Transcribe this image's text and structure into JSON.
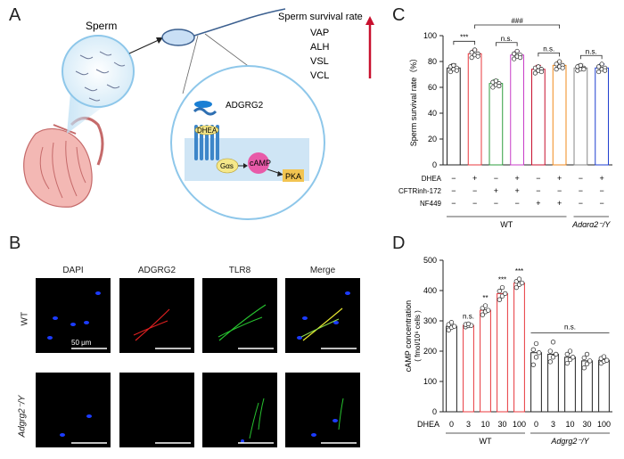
{
  "panels": {
    "a": "A",
    "b": "B",
    "c": "C",
    "d": "D"
  },
  "schematic": {
    "sperm_label": "Sperm",
    "survival_title": "Sperm survival rate",
    "params": [
      "VAP",
      "ALH",
      "VSL",
      "VCL"
    ],
    "receptor": "ADGRG2",
    "ligand": "DHEA",
    "galpha": "Gαs",
    "camp": "cAMP",
    "pka": "PKA",
    "colors": {
      "arrow": "#c8102e",
      "receptor": "#1a7fd4",
      "camp": "#e85aa8",
      "pka": "#f2c451"
    }
  },
  "micrographs": {
    "columns": [
      "DAPI",
      "ADGRG2",
      "TLR8",
      "Merge"
    ],
    "rows": [
      "WT",
      "Adgrg2⁻/Y"
    ],
    "scale_bar": "50 μm"
  },
  "chart_data": [
    {
      "type": "bar",
      "ylabel": "Sperm survival rate（%）",
      "ylim": [
        0,
        100
      ],
      "yticks": [
        0,
        20,
        40,
        60,
        80,
        100
      ],
      "bars": [
        {
          "value": 75,
          "color": "#222222",
          "points": [
            72,
            74,
            75,
            76,
            77,
            73
          ]
        },
        {
          "value": 86,
          "color": "#e8383d",
          "points": [
            83,
            85,
            86,
            87,
            89,
            84
          ]
        },
        {
          "value": 63,
          "color": "#2e9e3e",
          "points": [
            60,
            62,
            63,
            64,
            65,
            61
          ]
        },
        {
          "value": 85,
          "color": "#c83cc8",
          "points": [
            82,
            84,
            85,
            86,
            88,
            83
          ]
        },
        {
          "value": 74,
          "color": "#c8102e",
          "points": [
            71,
            73,
            74,
            75,
            76,
            72
          ]
        },
        {
          "value": 77,
          "color": "#f08a1c",
          "points": [
            74,
            76,
            77,
            78,
            80,
            75
          ]
        },
        {
          "value": 75,
          "color": "#888888",
          "points": [
            73,
            74,
            75,
            76,
            77,
            74
          ]
        },
        {
          "value": 75,
          "color": "#1f3fd0",
          "points": [
            72,
            74,
            75,
            76,
            78,
            73
          ]
        }
      ],
      "significance": [
        {
          "from": 0,
          "to": 1,
          "label": "***"
        },
        {
          "from": 2,
          "to": 3,
          "label": "n.s."
        },
        {
          "from": 4,
          "to": 5,
          "label": "n.s."
        },
        {
          "from": 6,
          "to": 7,
          "label": "n.s."
        },
        {
          "from": 1,
          "to": 5,
          "label": "###"
        }
      ],
      "table_rows": [
        {
          "label": "DHEA",
          "signs": [
            "−",
            "+",
            "−",
            "+",
            "−",
            "+",
            "−",
            "+"
          ]
        },
        {
          "label": "CFTRinh-172",
          "signs": [
            "−",
            "−",
            "+",
            "+",
            "−",
            "−",
            "−",
            "−"
          ]
        },
        {
          "label": "NF449",
          "signs": [
            "−",
            "−",
            "−",
            "−",
            "+",
            "+",
            "−",
            "−"
          ]
        }
      ],
      "groups": [
        {
          "label": "WT",
          "span": [
            0,
            5
          ]
        },
        {
          "label": "Adgrg2⁻/Y",
          "span": [
            6,
            7
          ]
        }
      ]
    },
    {
      "type": "bar",
      "ylabel": "cAMP concentration",
      "ylabel2": "( fmol/10⁶ cells )",
      "ylim": [
        0,
        500
      ],
      "yticks": [
        0,
        100,
        200,
        300,
        400,
        500
      ],
      "x_row_label": "DHEA",
      "bars": [
        {
          "dose": "0",
          "value": 282,
          "color": "#222222",
          "points": [
            270,
            278,
            282,
            288,
            295
          ]
        },
        {
          "dose": "3",
          "value": 285,
          "color": "#e8383d",
          "points": [
            280,
            284,
            285,
            288,
            290
          ]
        },
        {
          "dose": "10",
          "value": 335,
          "color": "#e8383d",
          "points": [
            320,
            330,
            335,
            342,
            350
          ]
        },
        {
          "dose": "30",
          "value": 390,
          "color": "#e8383d",
          "points": [
            370,
            382,
            390,
            398,
            410
          ]
        },
        {
          "dose": "100",
          "value": 425,
          "color": "#e8383d",
          "points": [
            410,
            420,
            425,
            430,
            438
          ]
        },
        {
          "dose": "0",
          "value": 195,
          "color": "#222222",
          "points": [
            155,
            180,
            195,
            205,
            225
          ]
        },
        {
          "dose": "3",
          "value": 190,
          "color": "#222222",
          "points": [
            165,
            180,
            190,
            200,
            230
          ]
        },
        {
          "dose": "10",
          "value": 180,
          "color": "#222222",
          "points": [
            160,
            172,
            180,
            190,
            200
          ]
        },
        {
          "dose": "30",
          "value": 168,
          "color": "#222222",
          "points": [
            145,
            158,
            168,
            178,
            190
          ]
        },
        {
          "dose": "100",
          "value": 170,
          "color": "#222222",
          "points": [
            160,
            166,
            170,
            176,
            182
          ]
        }
      ],
      "stars": [
        "n.s.",
        "**",
        "***",
        "***"
      ],
      "ns_bracket": "n.s.",
      "groups": [
        {
          "label": "WT",
          "span": [
            0,
            4
          ]
        },
        {
          "label": "Adgrg2⁻/Y",
          "span": [
            5,
            9
          ]
        }
      ]
    }
  ]
}
